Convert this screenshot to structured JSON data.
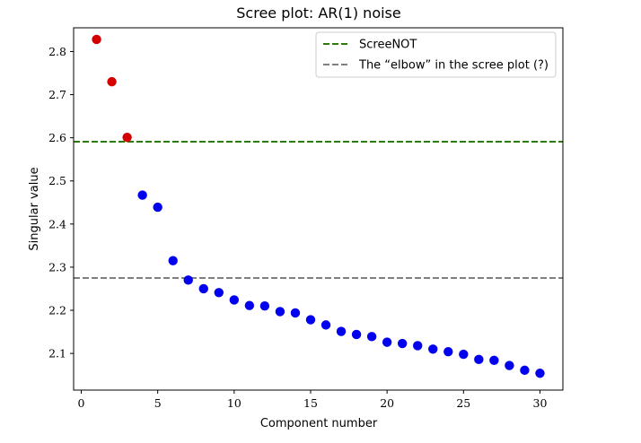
{
  "chart_data": {
    "type": "scatter",
    "title": "Scree plot: AR(1) noise",
    "xlabel": "Component number",
    "ylabel": "Singular value",
    "xlim": [
      -0.5,
      31.5
    ],
    "ylim": [
      2.015,
      2.855
    ],
    "xticks": [
      0,
      5,
      10,
      15,
      20,
      25,
      30
    ],
    "yticks": [
      2.1,
      2.2,
      2.3,
      2.4,
      2.5,
      2.6,
      2.7,
      2.8
    ],
    "grid": false,
    "legend_position": "top-right",
    "series": [
      {
        "color": "#d40000",
        "x": [
          1,
          2,
          3
        ],
        "y": [
          2.828,
          2.73,
          2.601
        ]
      },
      {
        "color": "#0000ee",
        "x": [
          4,
          5,
          6,
          7,
          8,
          9,
          10,
          11,
          12,
          13,
          14,
          15,
          16,
          17,
          18,
          19,
          20,
          21,
          22,
          23,
          24,
          25,
          26,
          27,
          28,
          29,
          30
        ],
        "y": [
          2.467,
          2.439,
          2.315,
          2.27,
          2.25,
          2.241,
          2.224,
          2.211,
          2.21,
          2.197,
          2.194,
          2.178,
          2.166,
          2.151,
          2.144,
          2.139,
          2.126,
          2.123,
          2.118,
          2.11,
          2.104,
          2.098,
          2.086,
          2.084,
          2.072,
          2.061,
          2.054
        ]
      }
    ],
    "reference_lines": [
      {
        "name": "ScreeNOT",
        "y": 2.591,
        "color": "#2f7a10",
        "style": "dashed"
      },
      {
        "name": "The “elbow” in the scree plot (?)",
        "y": 2.275,
        "color": "#7f7f7f",
        "style": "dashed"
      }
    ]
  }
}
